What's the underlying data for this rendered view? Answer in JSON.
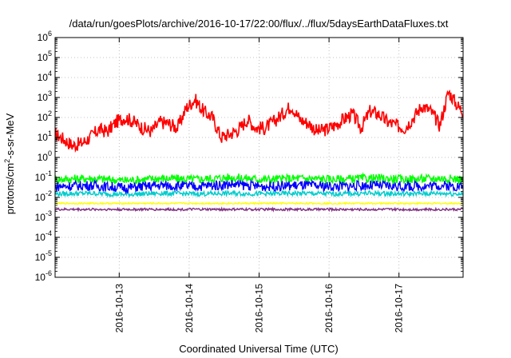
{
  "chart_data": {
    "type": "line",
    "title": "/data/run/goesPlots/archive/2016-10-17/22:00/flux/../flux/5daysEarthDataFluxes.txt",
    "xlabel": "Coordinated Universal Time (UTC)",
    "ylabel": {
      "prefix": "protons/cm",
      "superscript": "2",
      "suffix": "-s-sr-MeV"
    },
    "y_scale": "log",
    "ylim": [
      1e-06,
      1000000.0
    ],
    "y_ticks": [
      {
        "base": "10",
        "exp": "-6"
      },
      {
        "base": "10",
        "exp": "-5"
      },
      {
        "base": "10",
        "exp": "-4"
      },
      {
        "base": "10",
        "exp": "-3"
      },
      {
        "base": "10",
        "exp": "-2"
      },
      {
        "base": "10",
        "exp": "-1"
      },
      {
        "base": "10",
        "exp": "0"
      },
      {
        "base": "10",
        "exp": "1"
      },
      {
        "base": "10",
        "exp": "2"
      },
      {
        "base": "10",
        "exp": "3"
      },
      {
        "base": "10",
        "exp": "4"
      },
      {
        "base": "10",
        "exp": "5"
      },
      {
        "base": "10",
        "exp": "6"
      }
    ],
    "xlim": [
      "2016-10-12T02:00",
      "2016-10-17T22:00"
    ],
    "x_ticks": [
      "2016-10-13",
      "2016-10-14",
      "2016-10-15",
      "2016-10-16",
      "2016-10-17"
    ],
    "grid": true,
    "legend": "none",
    "series": [
      {
        "color": "#ff0000",
        "x": [
          "2016-10-12T02:00",
          "2016-10-12T05:00",
          "2016-10-12T08:00",
          "2016-10-12T11:00",
          "2016-10-12T14:00",
          "2016-10-12T17:00",
          "2016-10-12T20:00",
          "2016-10-12T23:00",
          "2016-10-13T02:00",
          "2016-10-13T05:00",
          "2016-10-13T08:00",
          "2016-10-13T11:00",
          "2016-10-13T14:00",
          "2016-10-13T17:00",
          "2016-10-13T20:00",
          "2016-10-13T23:00",
          "2016-10-14T02:00",
          "2016-10-14T05:00",
          "2016-10-14T08:00",
          "2016-10-14T11:00",
          "2016-10-14T14:00",
          "2016-10-14T17:00",
          "2016-10-14T20:00",
          "2016-10-14T23:00",
          "2016-10-15T02:00",
          "2016-10-15T05:00",
          "2016-10-15T08:00",
          "2016-10-15T11:00",
          "2016-10-15T14:00",
          "2016-10-15T17:00",
          "2016-10-15T20:00",
          "2016-10-15T23:00",
          "2016-10-16T02:00",
          "2016-10-16T05:00",
          "2016-10-16T08:00",
          "2016-10-16T11:00",
          "2016-10-16T14:00",
          "2016-10-16T17:00",
          "2016-10-16T20:00",
          "2016-10-16T23:00",
          "2016-10-17T02:00",
          "2016-10-17T05:00",
          "2016-10-17T08:00",
          "2016-10-17T11:00",
          "2016-10-17T14:00",
          "2016-10-17T17:00",
          "2016-10-17T20:00",
          "2016-10-17T22:00"
        ],
        "values": [
          15,
          8,
          4,
          5,
          10,
          25,
          20,
          60,
          100,
          60,
          30,
          20,
          60,
          50,
          30,
          300,
          800,
          200,
          100,
          10,
          15,
          25,
          80,
          30,
          30,
          60,
          150,
          400,
          80,
          50,
          20,
          25,
          40,
          80,
          150,
          30,
          200,
          150,
          60,
          40,
          30,
          100,
          400,
          200,
          40,
          2000,
          400,
          200
        ]
      },
      {
        "color": "#00ff00",
        "x": [
          "2016-10-12T02:00",
          "2016-10-12T14:00",
          "2016-10-13T02:00",
          "2016-10-13T14:00",
          "2016-10-14T02:00",
          "2016-10-14T14:00",
          "2016-10-15T02:00",
          "2016-10-15T14:00",
          "2016-10-16T02:00",
          "2016-10-16T14:00",
          "2016-10-17T02:00",
          "2016-10-17T14:00",
          "2016-10-17T22:00"
        ],
        "values": [
          0.08,
          0.09,
          0.07,
          0.09,
          0.08,
          0.1,
          0.08,
          0.09,
          0.08,
          0.09,
          0.08,
          0.09,
          0.08
        ]
      },
      {
        "color": "#00cccc",
        "x": [
          "2016-10-12T02:00",
          "2016-10-12T14:00",
          "2016-10-13T02:00",
          "2016-10-13T14:00",
          "2016-10-14T02:00",
          "2016-10-14T14:00",
          "2016-10-15T02:00",
          "2016-10-15T14:00",
          "2016-10-16T02:00",
          "2016-10-16T14:00",
          "2016-10-17T02:00",
          "2016-10-17T14:00",
          "2016-10-17T22:00"
        ],
        "values": [
          0.015,
          0.016,
          0.014,
          0.016,
          0.015,
          0.016,
          0.015,
          0.016,
          0.015,
          0.016,
          0.015,
          0.016,
          0.015
        ]
      },
      {
        "color": "#0000ff",
        "x": [
          "2016-10-12T02:00",
          "2016-10-12T14:00",
          "2016-10-13T02:00",
          "2016-10-13T14:00",
          "2016-10-14T02:00",
          "2016-10-14T14:00",
          "2016-10-15T02:00",
          "2016-10-15T14:00",
          "2016-10-16T02:00",
          "2016-10-16T14:00",
          "2016-10-17T02:00",
          "2016-10-17T14:00",
          "2016-10-17T22:00"
        ],
        "values": [
          0.035,
          0.04,
          0.03,
          0.04,
          0.035,
          0.045,
          0.035,
          0.04,
          0.035,
          0.04,
          0.035,
          0.04,
          0.035
        ]
      },
      {
        "color": "#ffff00",
        "x": [
          "2016-10-12T02:00",
          "2016-10-12T14:00",
          "2016-10-13T02:00",
          "2016-10-13T14:00",
          "2016-10-14T02:00",
          "2016-10-14T14:00",
          "2016-10-15T02:00",
          "2016-10-15T14:00",
          "2016-10-16T02:00",
          "2016-10-16T14:00",
          "2016-10-17T02:00",
          "2016-10-17T14:00",
          "2016-10-17T22:00"
        ],
        "values": [
          0.005,
          0.005,
          0.005,
          0.005,
          0.005,
          0.005,
          0.005,
          0.005,
          0.005,
          0.005,
          0.005,
          0.005,
          0.005
        ]
      },
      {
        "color": "#803080",
        "x": [
          "2016-10-12T02:00",
          "2016-10-12T14:00",
          "2016-10-13T02:00",
          "2016-10-13T14:00",
          "2016-10-14T02:00",
          "2016-10-14T14:00",
          "2016-10-15T02:00",
          "2016-10-15T14:00",
          "2016-10-16T02:00",
          "2016-10-16T14:00",
          "2016-10-17T02:00",
          "2016-10-17T14:00",
          "2016-10-17T22:00"
        ],
        "values": [
          0.0025,
          0.0025,
          0.0025,
          0.0025,
          0.0025,
          0.0025,
          0.0025,
          0.0025,
          0.0025,
          0.0025,
          0.0025,
          0.0025,
          0.0025
        ]
      }
    ]
  }
}
